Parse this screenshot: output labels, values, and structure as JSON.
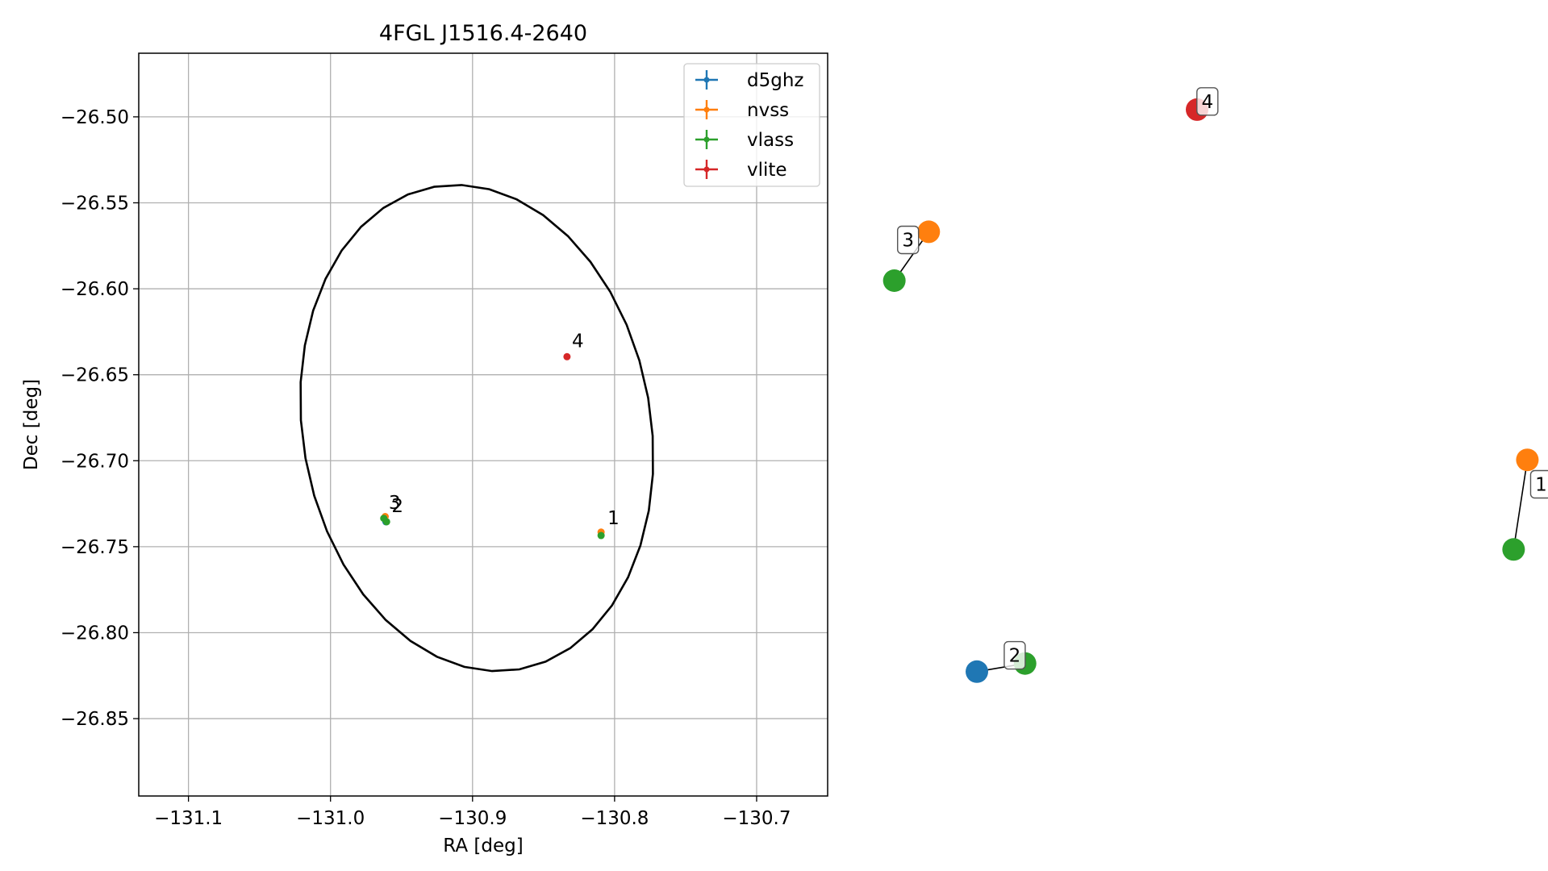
{
  "chart_data": [
    {
      "type": "scatter",
      "title": "4FGL J1516.4-2640",
      "xlabel": "RA [deg]",
      "ylabel": "Dec [deg]",
      "xlim": [
        -131.135,
        -130.65
      ],
      "ylim": [
        -26.895,
        -26.463
      ],
      "xticks": [
        -131.1,
        -131.0,
        -130.9,
        -130.8,
        -130.7
      ],
      "xtick_labels": [
        "−131.1",
        "−131.0",
        "−130.9",
        "−130.8",
        "−130.7"
      ],
      "yticks": [
        -26.5,
        -26.55,
        -26.6,
        -26.65,
        -26.7,
        -26.75,
        -26.8,
        -26.85
      ],
      "ytick_labels": [
        "−26.50",
        "−26.55",
        "−26.60",
        "−26.65",
        "−26.70",
        "−26.75",
        "−26.80",
        "−26.85"
      ],
      "grid": true,
      "legend_position": "top-right",
      "series": [
        {
          "name": "d5ghz",
          "color": "#1f77b4",
          "points": [
            {
              "x": -130.961,
              "y": -26.7355
            }
          ]
        },
        {
          "name": "nvss",
          "color": "#ff7f0e",
          "points": [
            {
              "x": -130.8095,
              "y": -26.7415
            },
            {
              "x": -130.9615,
              "y": -26.7325
            }
          ]
        },
        {
          "name": "vlass",
          "color": "#2ca02c",
          "points": [
            {
              "x": -130.8095,
              "y": -26.7435
            },
            {
              "x": -130.9605,
              "y": -26.7355
            },
            {
              "x": -130.9625,
              "y": -26.7335
            }
          ]
        },
        {
          "name": "vlite",
          "color": "#d62728",
          "points": [
            {
              "x": -130.8335,
              "y": -26.6395
            }
          ]
        }
      ],
      "annotations": [
        {
          "text": "1",
          "x": -130.805,
          "y": -26.737
        },
        {
          "text": "2",
          "x": -130.957,
          "y": -26.73
        },
        {
          "text": "3",
          "x": -130.959,
          "y": -26.728
        },
        {
          "text": "4",
          "x": -130.83,
          "y": -26.634
        }
      ],
      "ellipse": {
        "center_ra": -130.897,
        "center_dec": -26.681,
        "ra_semi_axis": 0.1225,
        "dec_semi_axis": 0.1425,
        "tilt_deg": -10
      }
    },
    {
      "type": "network",
      "nodes": [
        {
          "id": "4-vlite",
          "group": "4",
          "color": "#d62728",
          "pos": [
            0.49,
            0.09
          ]
        },
        {
          "id": "3-nvss",
          "group": "3",
          "color": "#ff7f0e",
          "pos": [
            0.1,
            0.24
          ]
        },
        {
          "id": "3-vlass",
          "group": "3",
          "color": "#2ca02c",
          "pos": [
            0.05,
            0.3
          ]
        },
        {
          "id": "1-nvss",
          "group": "1",
          "color": "#ff7f0e",
          "pos": [
            0.97,
            0.52
          ]
        },
        {
          "id": "1-vlass",
          "group": "1",
          "color": "#2ca02c",
          "pos": [
            0.95,
            0.63
          ]
        },
        {
          "id": "2-d5ghz",
          "group": "2",
          "color": "#1f77b4",
          "pos": [
            0.17,
            0.78
          ]
        },
        {
          "id": "2-vlass",
          "group": "2",
          "color": "#2ca02c",
          "pos": [
            0.24,
            0.77
          ]
        }
      ],
      "edges": [
        [
          "3-nvss",
          "3-vlass"
        ],
        [
          "1-nvss",
          "1-vlass"
        ],
        [
          "2-d5ghz",
          "2-vlass"
        ]
      ],
      "group_labels": [
        {
          "text": "4",
          "pos": [
            0.505,
            0.08
          ]
        },
        {
          "text": "3",
          "pos": [
            0.07,
            0.25
          ]
        },
        {
          "text": "1",
          "pos": [
            0.99,
            0.55
          ]
        },
        {
          "text": "2",
          "pos": [
            0.225,
            0.76
          ]
        }
      ]
    }
  ]
}
